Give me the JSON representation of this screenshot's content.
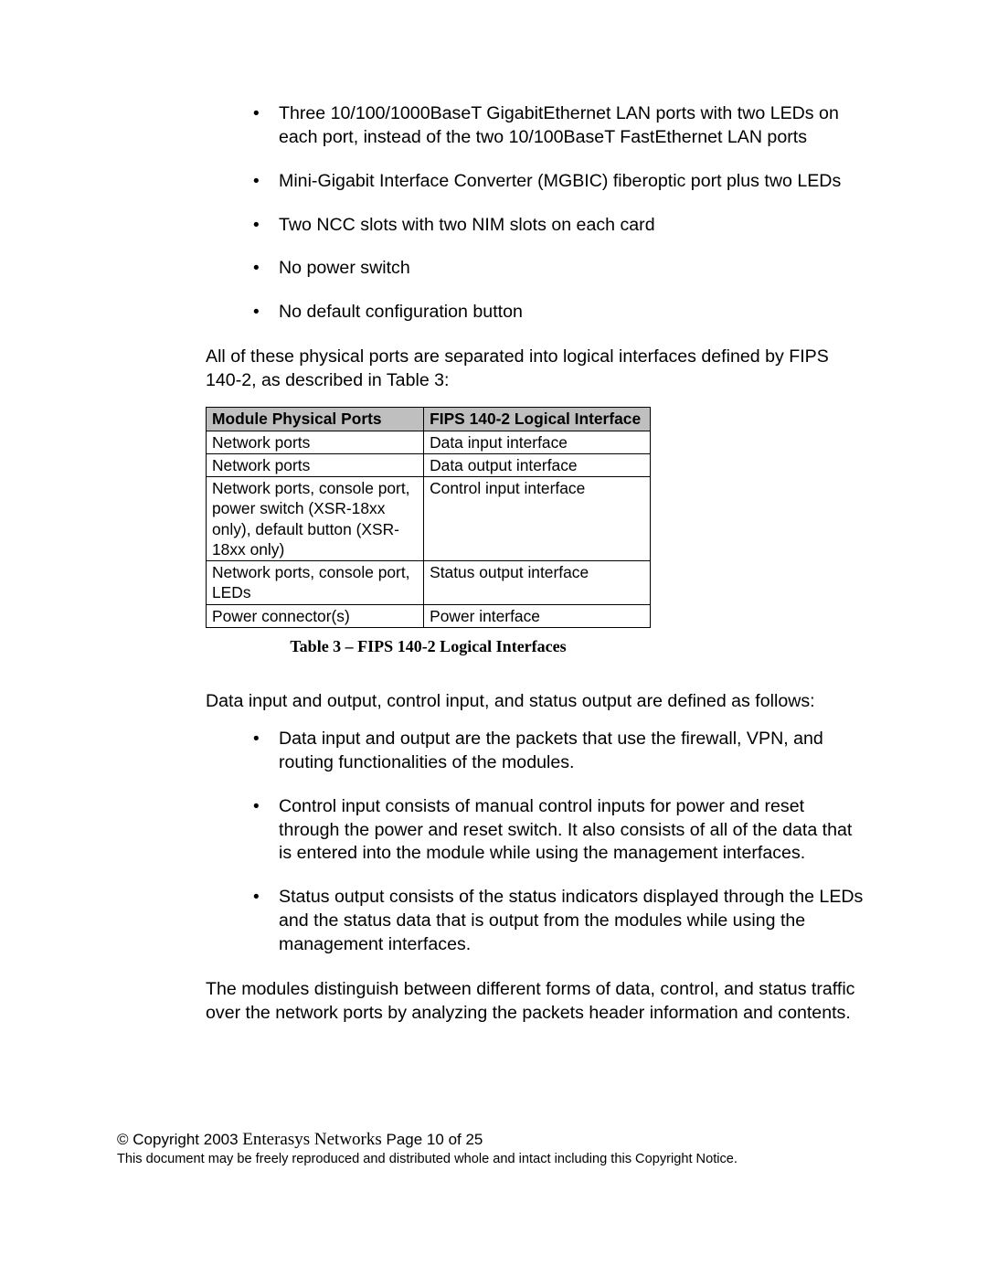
{
  "bullets_top": [
    "Three 10/100/1000BaseT GigabitEthernet LAN ports with two LEDs on each port, instead of the two 10/100BaseT FastEthernet LAN ports",
    "Mini-Gigabit Interface Converter (MGBIC) fiberoptic port plus two LEDs",
    "Two NCC slots with two NIM slots on each card",
    "No power switch",
    "No default configuration button"
  ],
  "para_after_top": "All of these physical ports are separated into logical interfaces defined by FIPS 140-2, as described in Table 3:",
  "table": {
    "header": [
      "Module Physical Ports",
      "FIPS 140-2 Logical Interface"
    ],
    "rows": [
      [
        "Network ports",
        "Data input interface"
      ],
      [
        "Network ports",
        "Data output interface"
      ],
      [
        "Network ports, console port, power switch (XSR-18xx only), default button (XSR-18xx only)",
        "Control input interface"
      ],
      [
        "Network ports, console port, LEDs",
        "Status output interface"
      ],
      [
        "Power connector(s)",
        "Power interface"
      ]
    ],
    "caption": "Table 3 – FIPS 140-2 Logical Interfaces",
    "header_bg": "#bfbfbf",
    "border_color": "#000000"
  },
  "para_after_table": "Data input and output, control input, and status output are defined as follows:",
  "bullets_mid": [
    "Data input and output are the packets that use the firewall, VPN, and routing functionalities of the modules.",
    "Control input consists of manual control inputs for power and reset through the power and reset switch. It also consists of all of the data that is entered into the module while using the management interfaces.",
    "Status output consists of the status indicators displayed through the LEDs and the status data that is output from the modules while using the management interfaces."
  ],
  "para_bottom": "The modules distinguish between different forms of data, control, and status traffic over the network ports by analyzing the packets header information and contents.",
  "footer": {
    "copyright_symbol": "©",
    "copyright_text": " Copyright 2003 ",
    "company": "Enterasys Networks",
    "page_text": "   Page 10 of 25",
    "notice": "This document may be freely reproduced and distributed whole and intact including this Copyright Notice."
  }
}
